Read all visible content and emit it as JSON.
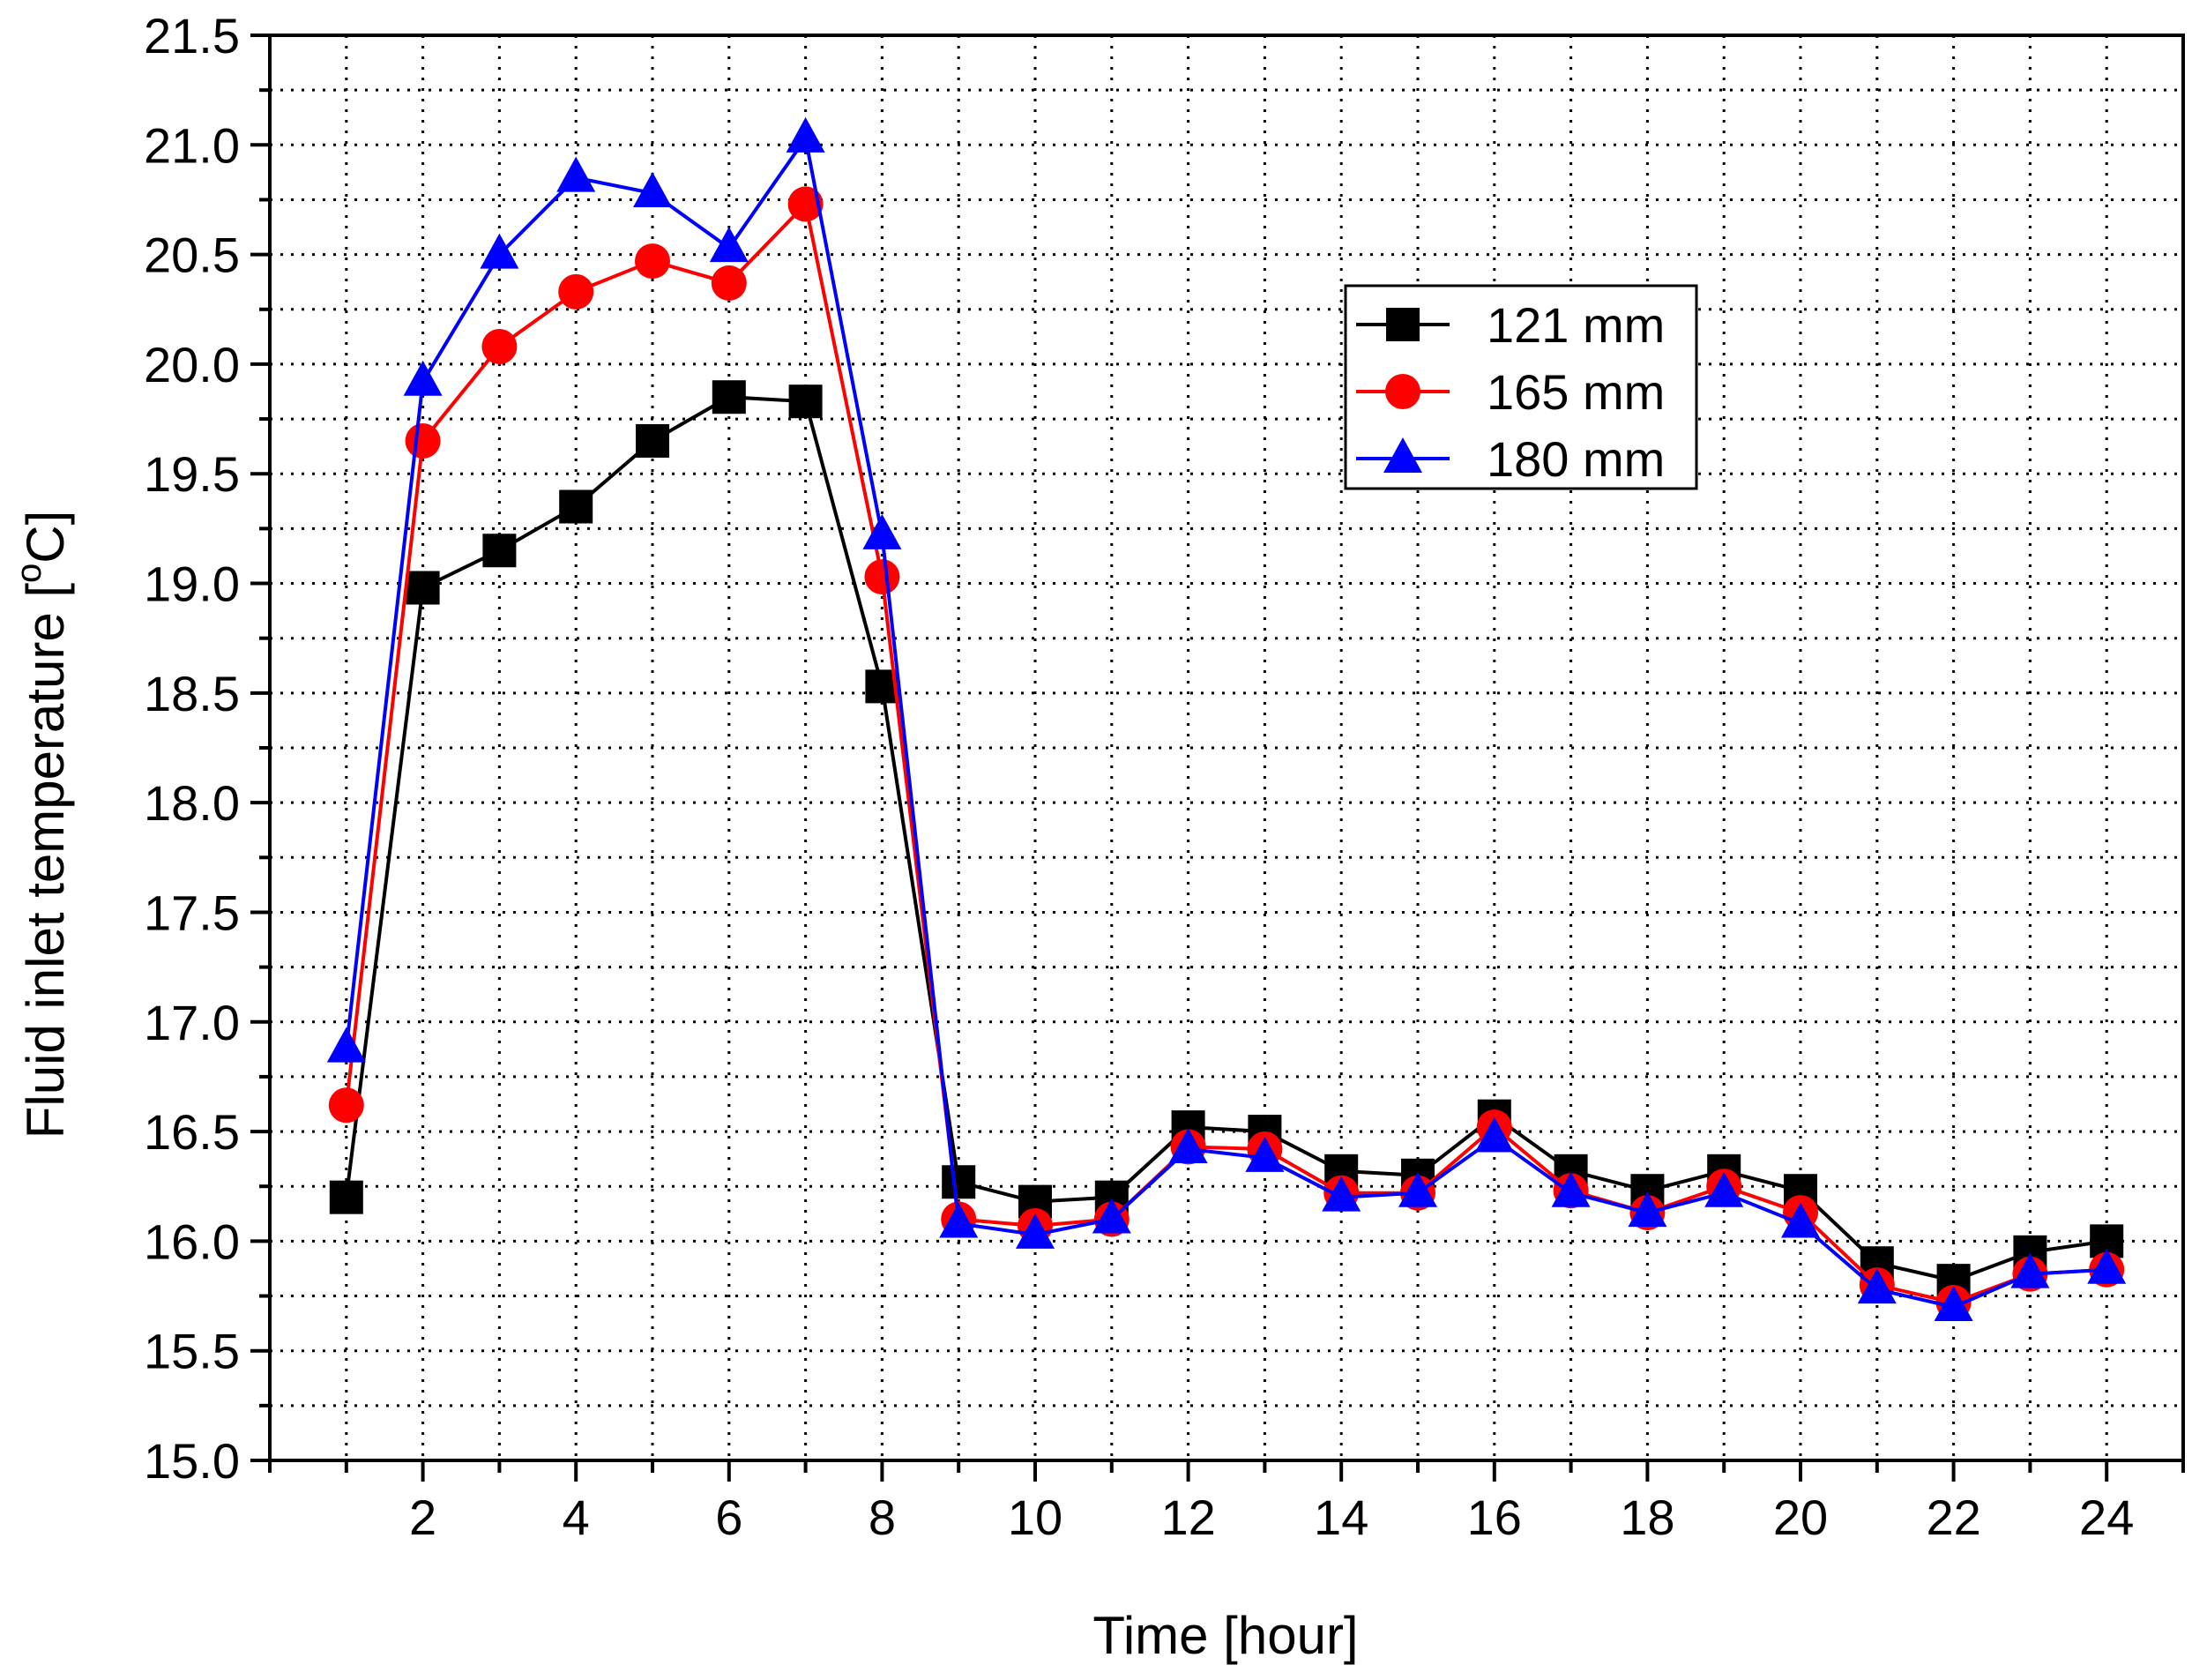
{
  "chart_data": {
    "type": "line",
    "title": "",
    "xlabel": "Time [hour]",
    "ylabel_main": "Fluid inlet temperature [",
    "ylabel_sup": "o",
    "ylabel_unit": "C]",
    "xlim": [
      0,
      25
    ],
    "ylim": [
      15.0,
      21.5
    ],
    "xticks": [
      2,
      4,
      6,
      8,
      10,
      12,
      14,
      16,
      18,
      20,
      22,
      24
    ],
    "xtick_labels": [
      "2",
      "4",
      "6",
      "8",
      "10",
      "12",
      "14",
      "16",
      "18",
      "20",
      "22",
      "24"
    ],
    "yticks": [
      15.0,
      15.5,
      16.0,
      16.5,
      17.0,
      17.5,
      18.0,
      18.5,
      19.0,
      19.5,
      20.0,
      20.5,
      21.0,
      21.5
    ],
    "ytick_labels": [
      "15.0",
      "15.5",
      "16.0",
      "16.5",
      "17.0",
      "17.5",
      "18.0",
      "18.5",
      "19.0",
      "19.5",
      "20.0",
      "20.5",
      "21.0",
      "21.5"
    ],
    "grid": true,
    "legend_position": "top-right",
    "x": [
      1,
      2,
      3,
      4,
      5,
      6,
      7,
      8,
      9,
      10,
      11,
      12,
      13,
      14,
      15,
      16,
      17,
      18,
      19,
      20,
      21,
      22,
      23,
      24
    ],
    "series": [
      {
        "name": "121 mm",
        "color": "#000000",
        "marker": "square",
        "values": [
          16.2,
          18.98,
          19.15,
          19.35,
          19.65,
          19.85,
          19.83,
          18.53,
          16.27,
          16.18,
          16.2,
          16.52,
          16.5,
          16.32,
          16.3,
          16.57,
          16.32,
          16.23,
          16.32,
          16.23,
          15.9,
          15.82,
          15.95,
          16.0
        ]
      },
      {
        "name": "165 mm",
        "color": "#ff0000",
        "marker": "circle",
        "values": [
          16.62,
          19.65,
          20.08,
          20.33,
          20.47,
          20.37,
          20.73,
          19.03,
          16.1,
          16.07,
          16.1,
          16.43,
          16.42,
          16.22,
          16.22,
          16.52,
          16.23,
          16.13,
          16.25,
          16.13,
          15.8,
          15.72,
          15.85,
          15.87
        ]
      },
      {
        "name": "180 mm",
        "color": "#0000ff",
        "marker": "triangle",
        "values": [
          16.88,
          19.92,
          20.5,
          20.85,
          20.78,
          20.53,
          21.03,
          19.22,
          16.08,
          16.03,
          16.1,
          16.42,
          16.38,
          16.2,
          16.22,
          16.47,
          16.22,
          16.13,
          16.22,
          16.08,
          15.78,
          15.7,
          15.85,
          15.87
        ]
      }
    ]
  }
}
